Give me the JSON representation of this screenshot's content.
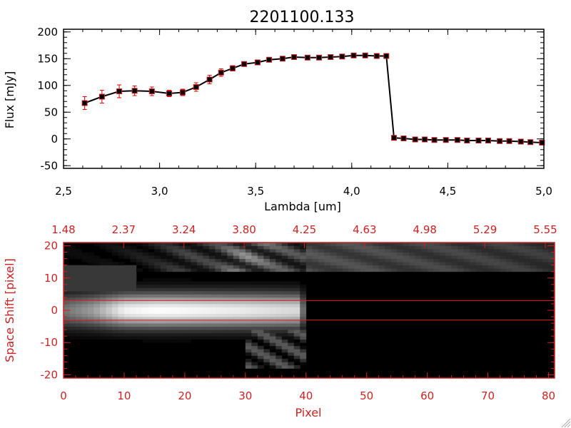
{
  "chart_data": [
    {
      "type": "line",
      "title": "2201100.133",
      "xlabel": "Lambda [um]",
      "ylabel": "Flux [mJy]",
      "xlim": [
        2.5,
        5.0
      ],
      "ylim": [
        -55,
        205
      ],
      "xticks": [
        "2.5",
        "3.0",
        "3.5",
        "4.0",
        "4.5",
        "5.0"
      ],
      "yticks": [
        "-50",
        "0",
        "50",
        "100",
        "150",
        "200"
      ],
      "grid": false,
      "colors": {
        "line": "#000000",
        "marker": "#000000",
        "marker_outline": "#cc2222",
        "error_bar": "#dd0000"
      },
      "series": [
        {
          "x": [
            2.61,
            2.7,
            2.79,
            2.87,
            2.96,
            3.05,
            3.12,
            3.19,
            3.26,
            3.32,
            3.38,
            3.44,
            3.51,
            3.57,
            3.64,
            3.7,
            3.77,
            3.83,
            3.89,
            3.95,
            4.01,
            4.07,
            4.13,
            4.18,
            4.22,
            4.27,
            4.33,
            4.38,
            4.43,
            4.49,
            4.55,
            4.6,
            4.66,
            4.71,
            4.77,
            4.82,
            4.88,
            4.93,
            4.99
          ],
          "y": [
            67,
            79,
            89,
            90,
            89,
            85,
            87,
            97,
            111,
            124,
            132,
            140,
            143,
            148,
            150,
            153,
            152,
            152,
            153,
            154,
            156,
            156,
            155,
            155,
            2,
            1,
            -1,
            -1,
            -2,
            -2,
            -2,
            -3,
            -3,
            -3,
            -4,
            -4,
            -5,
            -6,
            -7
          ],
          "yerr": [
            12,
            12,
            12,
            9,
            8,
            6,
            6,
            8,
            8,
            7,
            5,
            4,
            3,
            3,
            3,
            3,
            3,
            2,
            2,
            2,
            2,
            2,
            2,
            2,
            2,
            2,
            2,
            2,
            2,
            2,
            2,
            2,
            2,
            2,
            2,
            2,
            2,
            2,
            2
          ]
        }
      ]
    },
    {
      "type": "heatmap",
      "xlabel": "Pixel",
      "ylabel": "Space Shift [pixel]",
      "xlim": [
        0,
        81
      ],
      "ylim": [
        -21,
        21
      ],
      "xticks": [
        "0",
        "10",
        "20",
        "30",
        "40",
        "50",
        "60",
        "70",
        "80"
      ],
      "yticks": [
        "-20",
        "-10",
        "0",
        "10",
        "20"
      ],
      "top_axis_ticks": [
        "1.48",
        "2.37",
        "3.24",
        "3.80",
        "4.25",
        "4.63",
        "4.98",
        "5.29",
        "5.55"
      ],
      "colormap": "grayscale",
      "extraction_aperture": [
        -3,
        3
      ],
      "colors": {
        "axes": "#cc2222",
        "aperture_lines": "#dd2222"
      },
      "intensity": {
        "pixels": [
          0,
          5,
          10,
          15,
          20,
          25,
          30,
          35,
          39,
          40,
          50,
          60,
          70,
          80
        ],
        "center": [
          0.45,
          0.62,
          0.95,
          1.0,
          0.98,
          0.95,
          0.92,
          0.88,
          0.85,
          0.0,
          0.0,
          0.0,
          0.0,
          0.0
        ],
        "upper_band_y": [
          17,
          21
        ],
        "upper_band": [
          0.05,
          0.05,
          0.1,
          0.15,
          0.28,
          0.3,
          0.6,
          0.4,
          0.35,
          0.35,
          0.33,
          0.3,
          0.28,
          0.25
        ]
      }
    }
  ]
}
